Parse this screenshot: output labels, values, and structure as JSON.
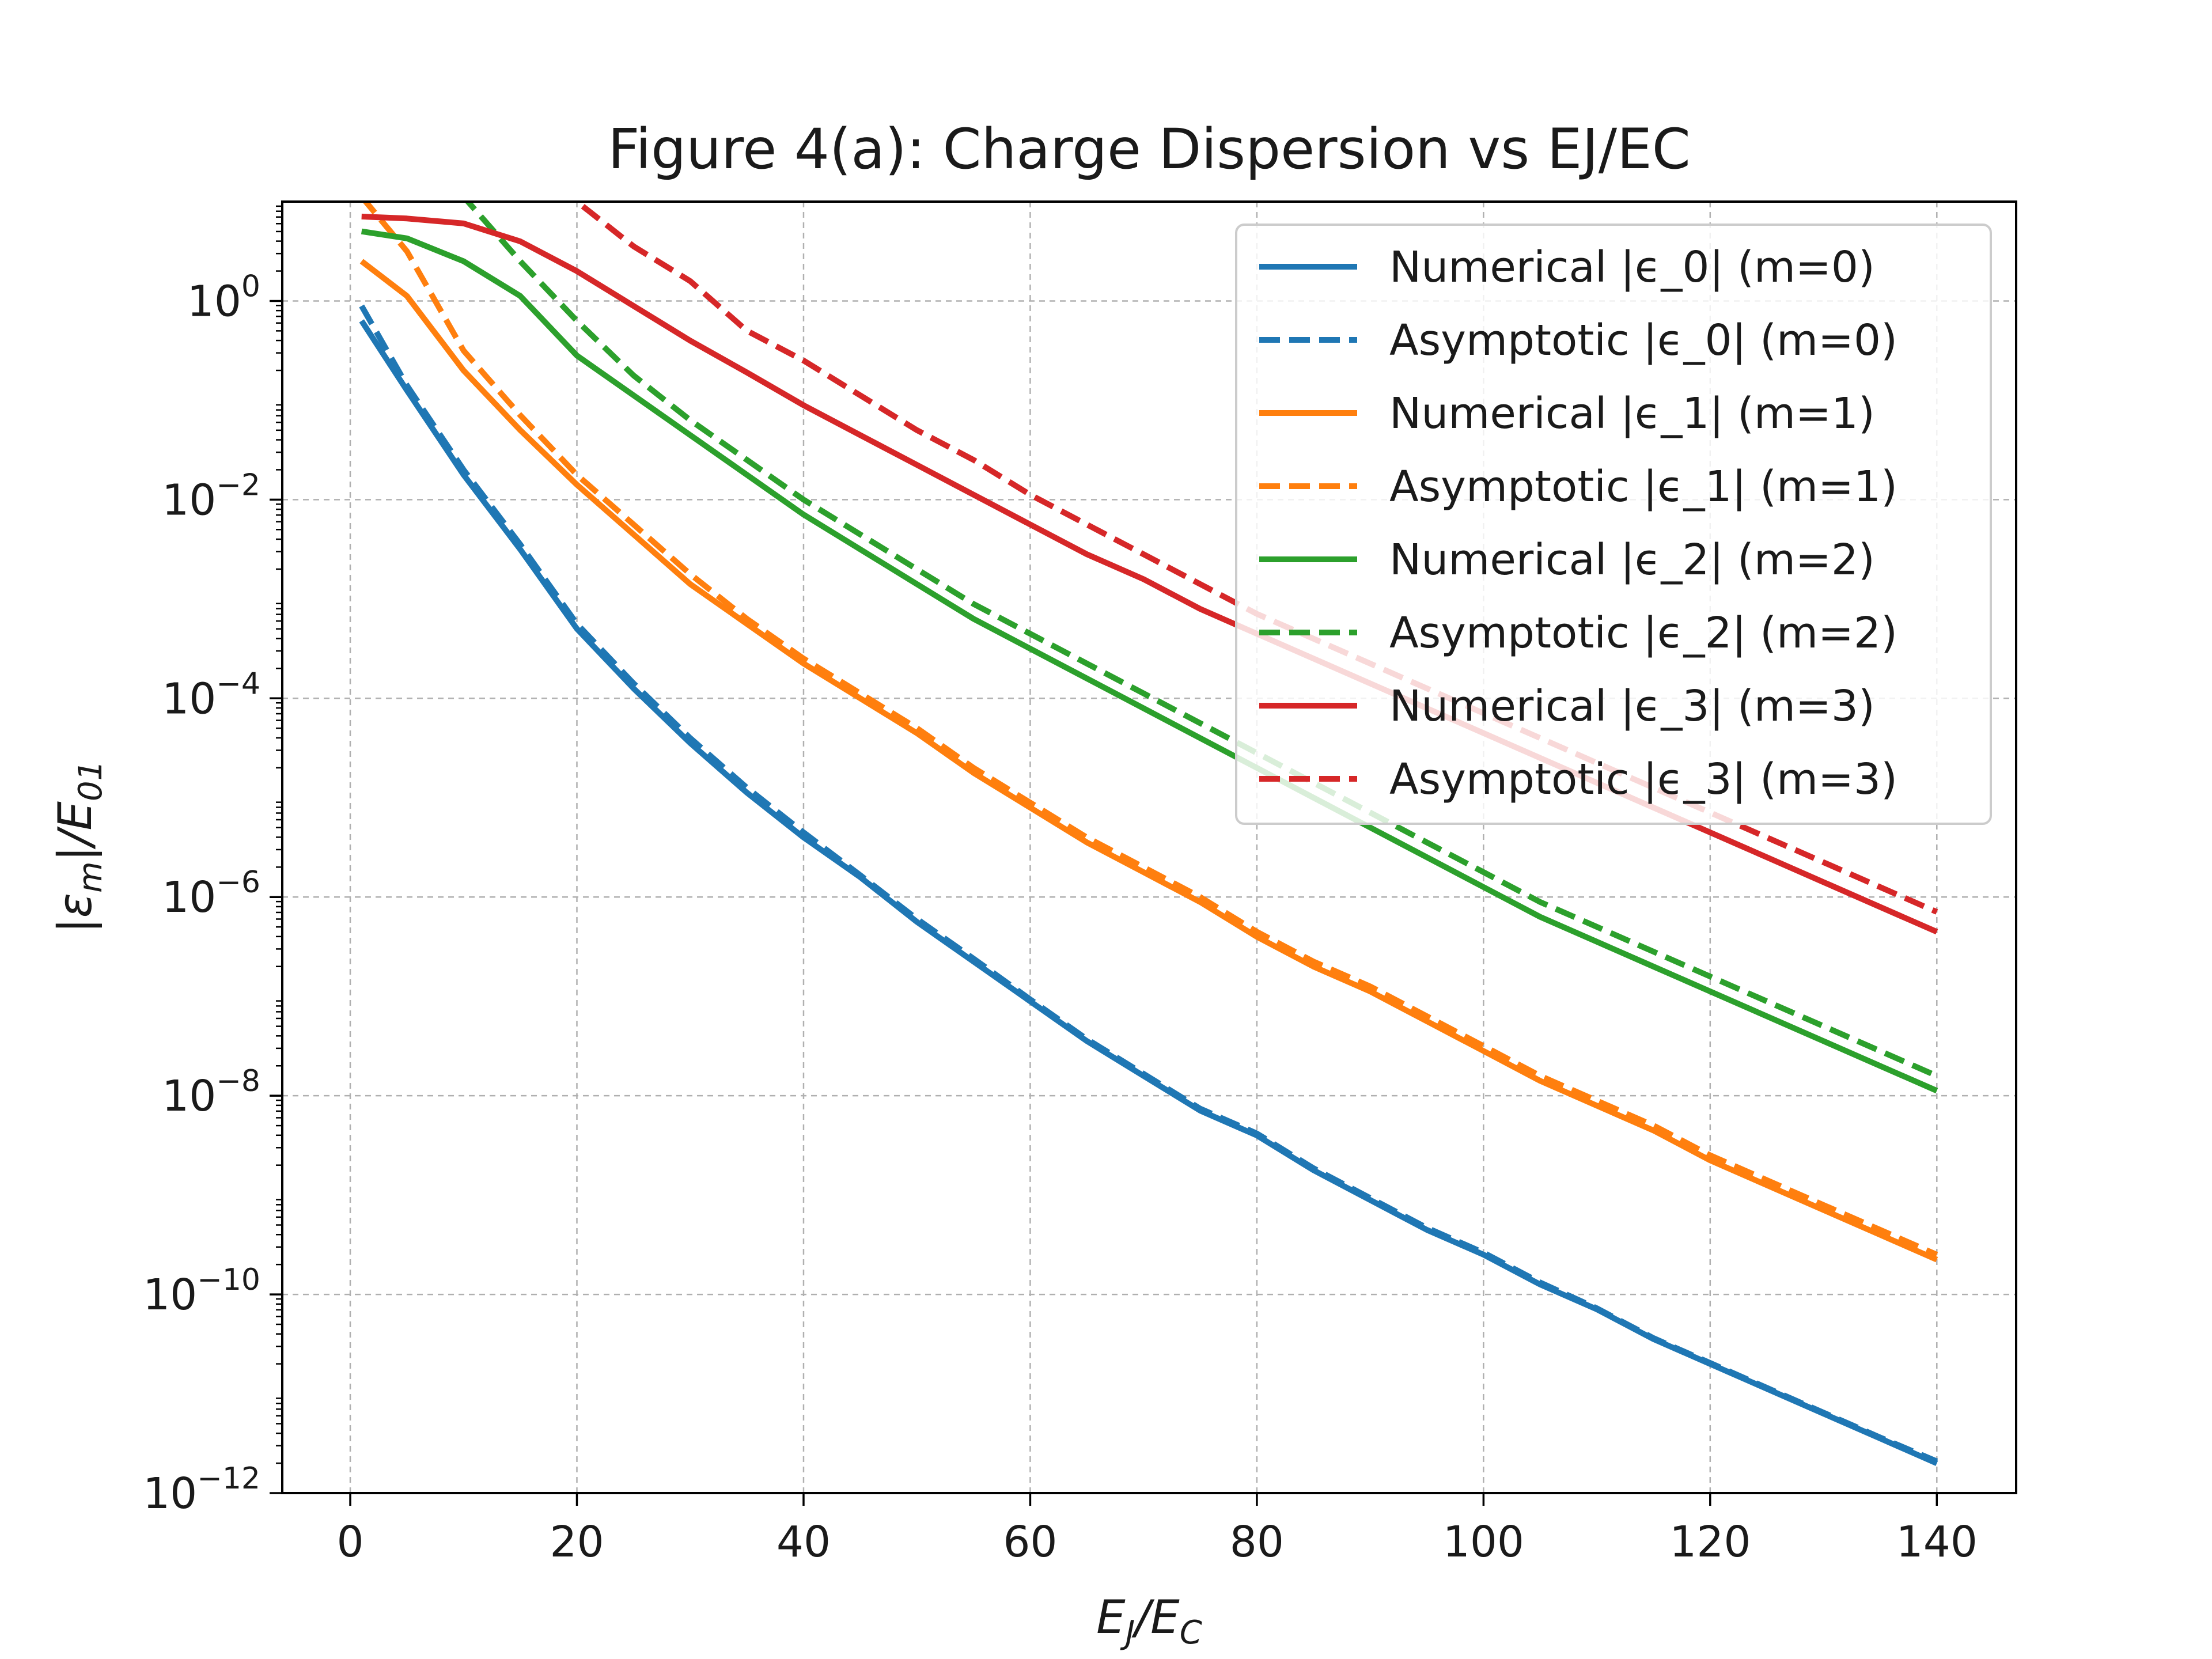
{
  "chart_data": {
    "type": "line",
    "title": "Figure 4(a): Charge Dispersion vs EJ/EC",
    "xlabel": {
      "base": "E",
      "sub1": "J",
      "sep": "/",
      "base2": "E",
      "sub2": "C"
    },
    "ylabel": {
      "open": "|",
      "base": "ε",
      "sub1": "m",
      "sep": "|/",
      "base2": "E",
      "sub2": "01"
    },
    "xlim": [
      -6,
      147
    ],
    "ylim_log10": [
      -12,
      1
    ],
    "yscale": "log",
    "grid": true,
    "legend_position": "upper right",
    "x_ticks": [
      "0",
      "20",
      "40",
      "60",
      "80",
      "100",
      "120",
      "140"
    ],
    "x_tick_values": [
      0,
      20,
      40,
      60,
      80,
      100,
      120,
      140
    ],
    "y_ticks": [
      {
        "base": "10",
        "exp": "0",
        "log10": 0
      },
      {
        "base": "10",
        "exp": "−2",
        "log10": -2
      },
      {
        "base": "10",
        "exp": "−4",
        "log10": -4
      },
      {
        "base": "10",
        "exp": "−6",
        "log10": -6
      },
      {
        "base": "10",
        "exp": "−8",
        "log10": -8
      },
      {
        "base": "10",
        "exp": "−10",
        "log10": -10
      },
      {
        "base": "10",
        "exp": "−12",
        "log10": -12
      }
    ],
    "x": [
      1,
      5,
      10,
      15,
      20,
      25,
      30,
      35,
      40,
      45,
      50,
      55,
      60,
      65,
      70,
      75,
      80,
      85,
      90,
      95,
      100,
      105,
      110,
      115,
      120,
      125,
      130,
      135,
      140
    ],
    "series": [
      {
        "name": "Numerical |ϵ_0| (m=0)",
        "color": "#1f77b4",
        "style": "solid",
        "log10_values": [
          -0.2,
          -0.9,
          -1.75,
          -2.5,
          -3.3,
          -3.9,
          -4.45,
          -4.95,
          -5.4,
          -5.8,
          -6.25,
          -6.65,
          -7.05,
          -7.45,
          -7.8,
          -8.15,
          -8.4,
          -8.75,
          -9.05,
          -9.35,
          -9.6,
          -9.9,
          -10.15,
          -10.45,
          -10.7,
          -10.95,
          -11.2,
          -11.45,
          -11.7
        ]
      },
      {
        "name": "Asymptotic |ϵ_0| (m=0)",
        "color": "#1f77b4",
        "style": "dashed",
        "log10_values": [
          -0.05,
          -0.85,
          -1.7,
          -2.45,
          -3.25,
          -3.85,
          -4.4,
          -4.9,
          -5.35,
          -5.78,
          -6.22,
          -6.62,
          -7.03,
          -7.43,
          -7.78,
          -8.13,
          -8.38,
          -8.73,
          -9.03,
          -9.33,
          -9.58,
          -9.88,
          -10.14,
          -10.44,
          -10.69,
          -10.94,
          -11.19,
          -11.44,
          -11.68
        ]
      },
      {
        "name": "Numerical |ϵ_1| (m=1)",
        "color": "#ff7f0e",
        "style": "solid",
        "log10_values": [
          0.4,
          0.05,
          -0.7,
          -1.3,
          -1.85,
          -2.35,
          -2.85,
          -3.25,
          -3.65,
          -4.0,
          -4.35,
          -4.75,
          -5.1,
          -5.45,
          -5.75,
          -6.05,
          -6.4,
          -6.7,
          -6.95,
          -7.25,
          -7.55,
          -7.85,
          -8.1,
          -8.35,
          -8.65,
          -8.9,
          -9.15,
          -9.4,
          -9.65
        ]
      },
      {
        "name": "Asymptotic |ϵ_1| (m=1)",
        "color": "#ff7f0e",
        "style": "dashed",
        "log10_values": [
          1.05,
          0.5,
          -0.5,
          -1.15,
          -1.75,
          -2.25,
          -2.75,
          -3.2,
          -3.6,
          -3.95,
          -4.3,
          -4.7,
          -5.05,
          -5.4,
          -5.7,
          -6.0,
          -6.35,
          -6.65,
          -6.9,
          -7.2,
          -7.5,
          -7.8,
          -8.05,
          -8.3,
          -8.6,
          -8.85,
          -9.1,
          -9.35,
          -9.6
        ]
      },
      {
        "name": "Numerical |ϵ_2| (m=2)",
        "color": "#2ca02c",
        "style": "solid",
        "log10_values": [
          0.7,
          0.63,
          0.4,
          0.05,
          -0.55,
          -0.95,
          -1.35,
          -1.75,
          -2.15,
          -2.5,
          -2.85,
          -3.2,
          -3.5,
          -3.8,
          -4.1,
          -4.4,
          -4.7,
          -5.0,
          -5.3,
          -5.6,
          -5.9,
          -6.2,
          -6.45,
          -6.7,
          -6.95,
          -7.2,
          -7.45,
          -7.7,
          -7.95
        ]
      },
      {
        "name": "Asymptotic |ϵ_2| (m=2)",
        "color": "#2ca02c",
        "style": "dashed",
        "log10_values": [
          2.2,
          1.6,
          1.05,
          0.4,
          -0.2,
          -0.75,
          -1.2,
          -1.6,
          -2.0,
          -2.35,
          -2.7,
          -3.05,
          -3.35,
          -3.65,
          -3.95,
          -4.25,
          -4.55,
          -4.85,
          -5.15,
          -5.45,
          -5.75,
          -6.05,
          -6.3,
          -6.55,
          -6.8,
          -7.05,
          -7.3,
          -7.55,
          -7.8
        ]
      },
      {
        "name": "Numerical |ϵ_3| (m=3)",
        "color": "#d62728",
        "style": "solid",
        "log10_values": [
          0.85,
          0.83,
          0.78,
          0.6,
          0.3,
          -0.05,
          -0.4,
          -0.72,
          -1.05,
          -1.35,
          -1.65,
          -1.95,
          -2.25,
          -2.55,
          -2.8,
          -3.1,
          -3.35,
          -3.6,
          -3.85,
          -4.1,
          -4.35,
          -4.6,
          -4.85,
          -5.1,
          -5.35,
          -5.6,
          -5.85,
          -6.1,
          -6.35
        ]
      },
      {
        "name": "Asymptotic |ϵ_3| (m=3)",
        "color": "#d62728",
        "style": "dashed",
        "log10_values": [
          2.5,
          2.2,
          1.85,
          1.45,
          1.0,
          0.55,
          0.2,
          -0.3,
          -0.6,
          -0.95,
          -1.3,
          -1.6,
          -1.95,
          -2.25,
          -2.55,
          -2.85,
          -3.15,
          -3.4,
          -3.65,
          -3.9,
          -4.15,
          -4.4,
          -4.65,
          -4.9,
          -5.15,
          -5.4,
          -5.65,
          -5.9,
          -6.15
        ]
      }
    ]
  }
}
